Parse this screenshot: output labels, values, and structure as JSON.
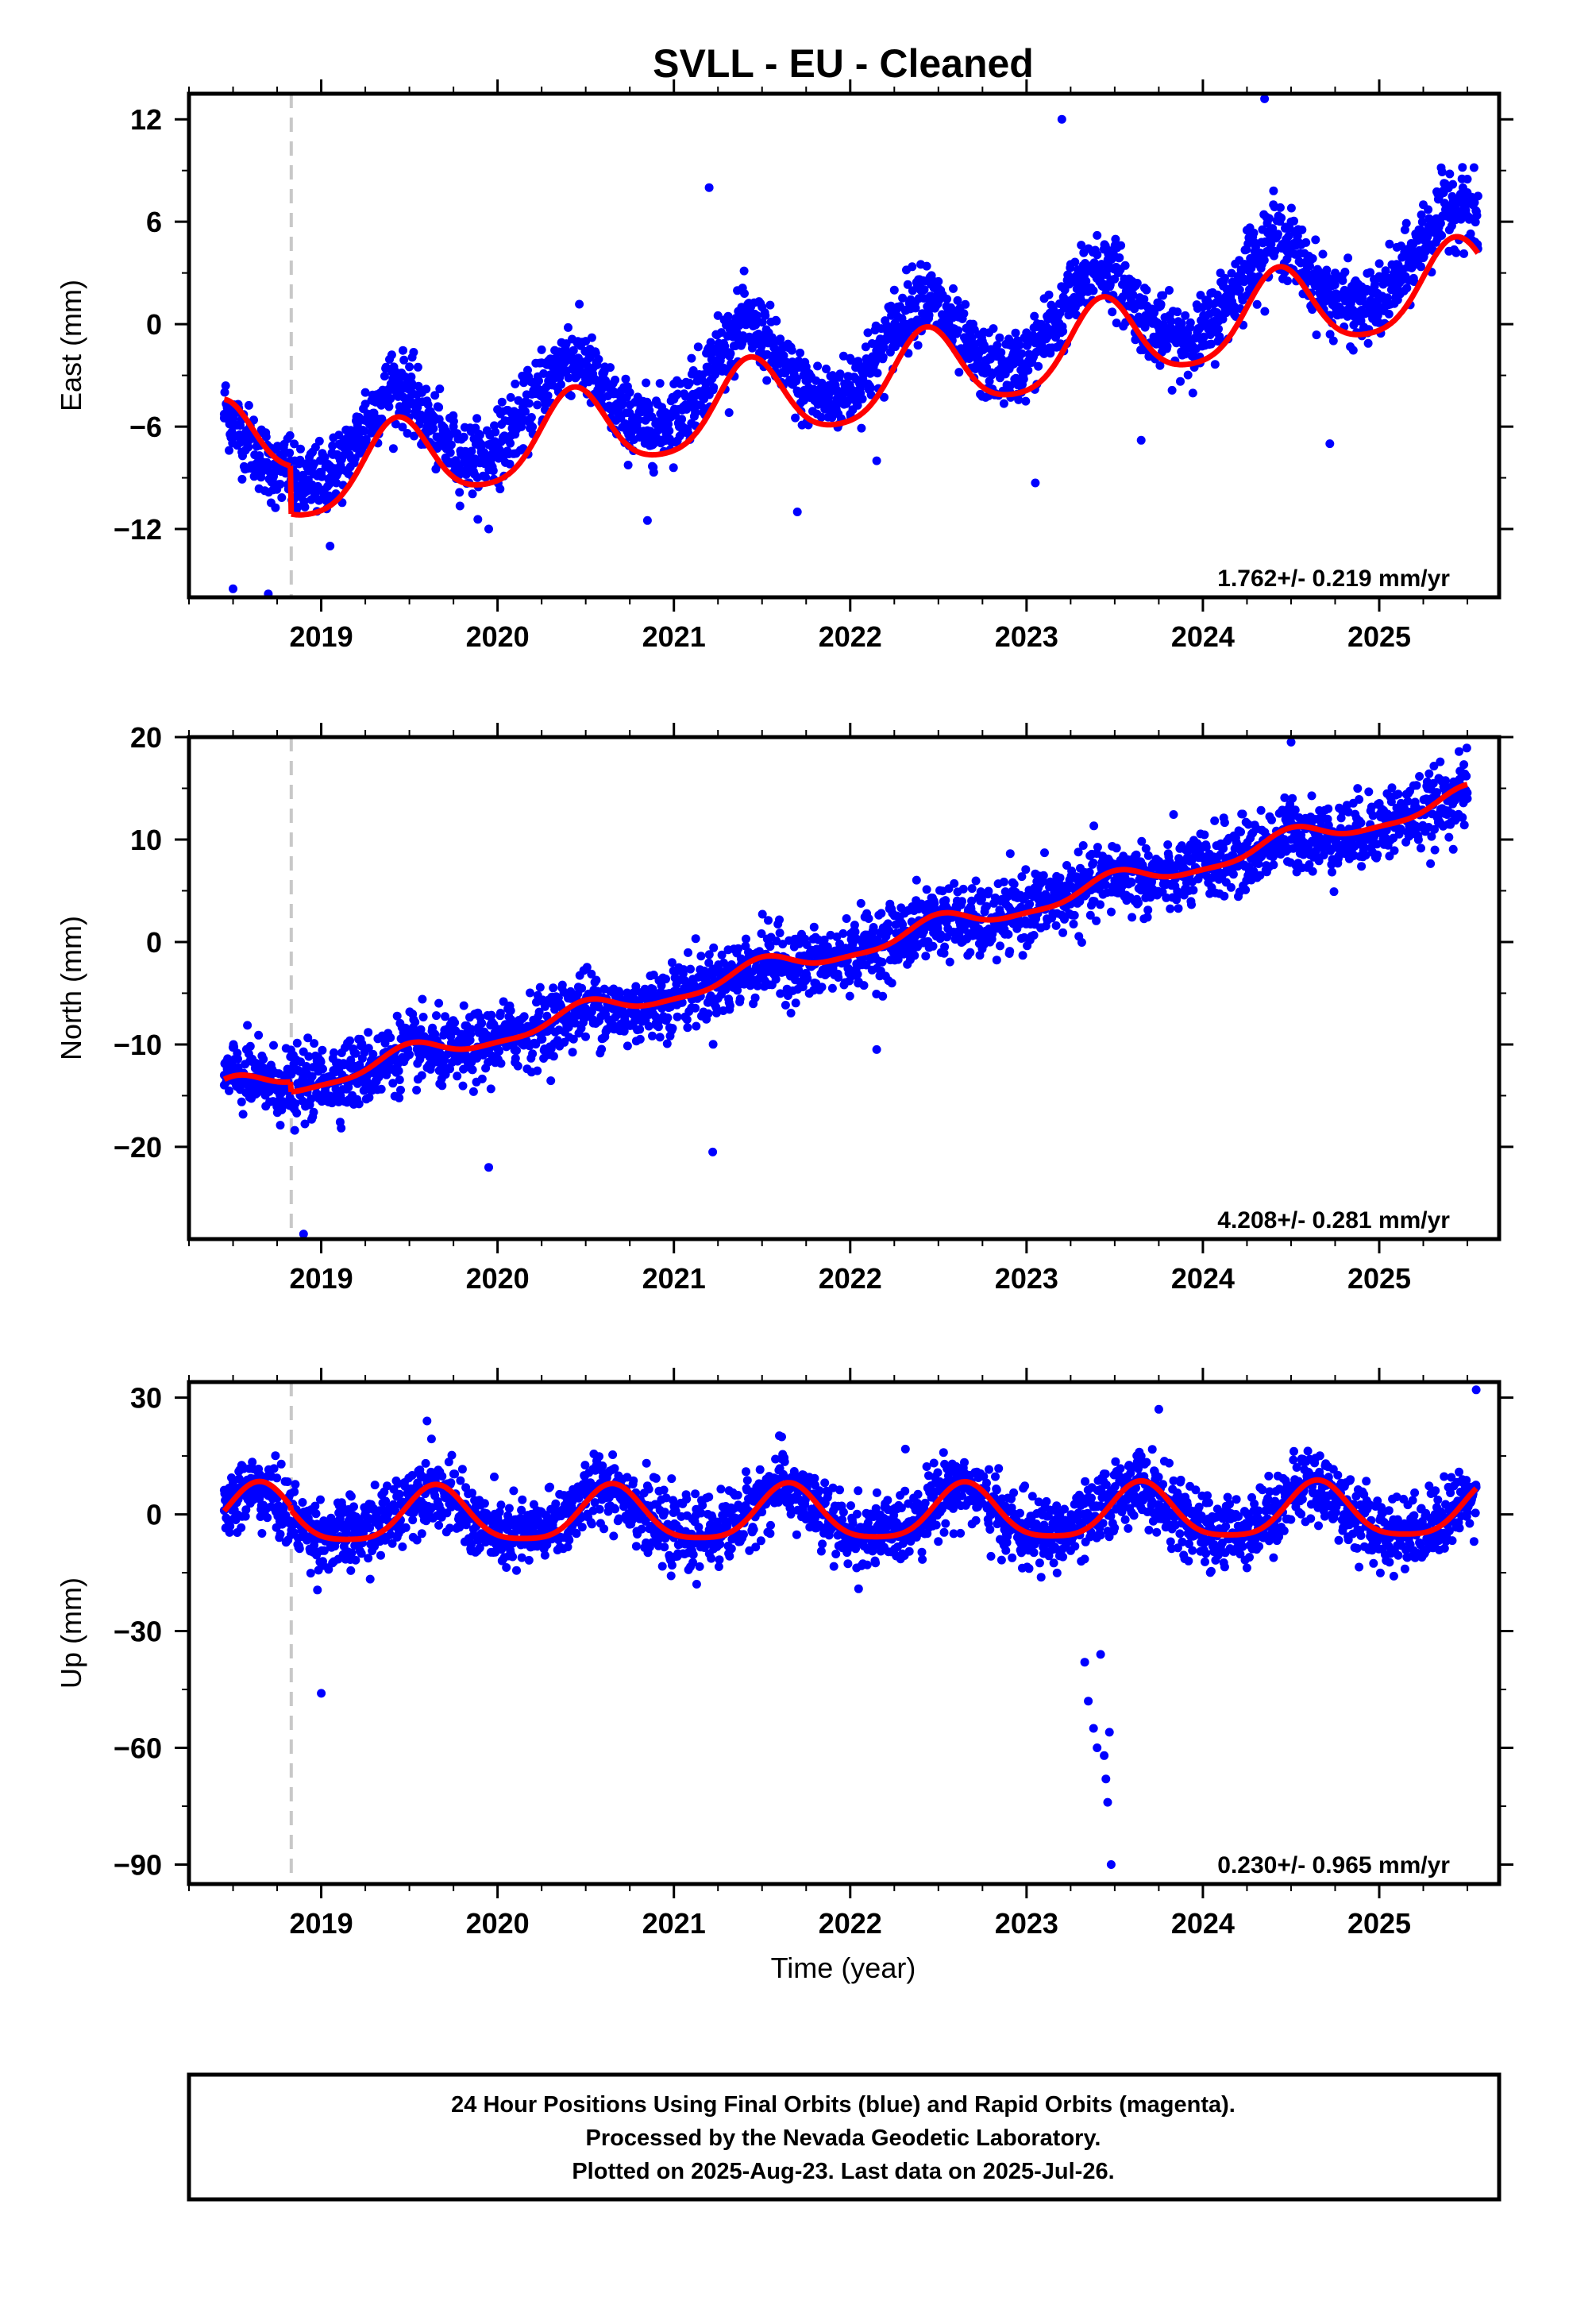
{
  "figure": {
    "title": "SVLL  - EU - Cleaned",
    "xlabel": "Time (year)",
    "footer": [
      "24 Hour Positions Using Final Orbits (blue) and Rapid Orbits (magenta).",
      "Processed by the Nevada Geodetic Laboratory.",
      "Plotted on 2025-Aug-23. Last data on 2025-Jul-26."
    ],
    "colors": {
      "points": "#0000ff",
      "model": "#ff0000",
      "event_line": "#c8c8c8",
      "frame": "#000000"
    }
  },
  "chart_data": [
    {
      "type": "scatter",
      "component": "East",
      "ylabel": "East (mm)",
      "xlim": [
        2018.25,
        2025.68
      ],
      "ylim": [
        -16,
        13.5
      ],
      "yticks": [
        -12,
        -6,
        0,
        6,
        12
      ],
      "xticks": [
        2019,
        2020,
        2021,
        2022,
        2023,
        2024,
        2025
      ],
      "rate_label": "1.762+/- 0.219 mm/yr",
      "event_line_x": 2018.83,
      "model": {
        "offset_before_event": -6.5,
        "offset_after_event": -9.3,
        "trend_mm_per_yr": 1.76,
        "annual_amp": 2.4,
        "semiannual_amp": 0.4,
        "annual_phase_peak": 0.43
      },
      "series": [
        {
          "role": "daily positions (final orbits)",
          "x": [
            2018.45,
            2018.55,
            2018.65,
            2018.75,
            2018.85,
            2018.95,
            2019.1,
            2019.25,
            2019.4,
            2019.5,
            2019.6,
            2019.75,
            2019.9,
            2020.0,
            2020.1,
            2020.25,
            2020.4,
            2020.5,
            2020.6,
            2020.75,
            2020.9,
            2021.0,
            2021.1,
            2021.25,
            2021.4,
            2021.5,
            2021.6,
            2021.75,
            2021.9,
            2022.0,
            2022.1,
            2022.25,
            2022.4,
            2022.5,
            2022.6,
            2022.75,
            2022.9,
            2023.0,
            2023.1,
            2023.25,
            2023.4,
            2023.5,
            2023.6,
            2023.75,
            2023.9,
            2024.0,
            2024.1,
            2024.25,
            2024.4,
            2024.5,
            2024.6,
            2024.75,
            2024.9,
            2025.0,
            2025.1,
            2025.25,
            2025.4,
            2025.5,
            2025.56
          ],
          "y": [
            -5.5,
            -7.5,
            -8.5,
            -9.5,
            -8.0,
            -7.5,
            -6.5,
            -4.0,
            -1.8,
            -2.5,
            -4.5,
            -6.0,
            -6.5,
            -5.0,
            -3.5,
            -1.5,
            -0.2,
            -1.0,
            -2.8,
            -4.0,
            -4.5,
            -3.5,
            -2.0,
            0.5,
            1.8,
            1.0,
            -1.0,
            -2.5,
            -3.0,
            -2.0,
            -0.5,
            2.0,
            3.5,
            2.5,
            0.5,
            -1.0,
            -1.2,
            -0.5,
            1.5,
            3.5,
            5.2,
            4.5,
            2.5,
            1.0,
            0.5,
            1.0,
            3.0,
            5.5,
            7.0,
            6.0,
            4.0,
            3.0,
            2.2,
            2.8,
            4.5,
            7.0,
            8.8,
            8.5,
            7.5
          ]
        },
        {
          "role": "outliers",
          "x": [
            2018.5,
            2018.7,
            2019.05,
            2019.95,
            2020.85,
            2021.2,
            2021.7,
            2022.15,
            2023.05,
            2023.2,
            2023.65,
            2024.35,
            2024.72
          ],
          "y": [
            -15.5,
            -15.8,
            -13.0,
            -12.0,
            -11.5,
            8.0,
            -11.0,
            -8.0,
            -9.3,
            12.0,
            -6.8,
            13.2,
            -7.0
          ]
        }
      ]
    },
    {
      "type": "scatter",
      "component": "North",
      "ylabel": "North (mm)",
      "xlim": [
        2018.25,
        2025.68
      ],
      "ylim": [
        -29,
        20
      ],
      "yticks": [
        -20,
        -10,
        0,
        10,
        20
      ],
      "xticks": [
        2019,
        2020,
        2021,
        2022,
        2023,
        2024,
        2025
      ],
      "rate_label": "4.208+/- 0.281 mm/yr",
      "event_line_x": 2018.83,
      "model": {
        "offset_before_event": -13.0,
        "offset_after_event": -14.0,
        "trend_mm_per_yr": 4.21,
        "annual_amp": 1.0,
        "semiannual_amp": 0.3,
        "annual_phase_peak": 0.5
      },
      "series": [
        {
          "role": "daily positions (final orbits)",
          "x": [
            2018.45,
            2018.6,
            2018.75,
            2018.9,
            2019.1,
            2019.3,
            2019.5,
            2019.7,
            2019.9,
            2020.1,
            2020.3,
            2020.5,
            2020.7,
            2020.9,
            2021.1,
            2021.3,
            2021.5,
            2021.7,
            2021.9,
            2022.1,
            2022.3,
            2022.5,
            2022.7,
            2022.9,
            2023.1,
            2023.3,
            2023.5,
            2023.7,
            2023.9,
            2024.1,
            2024.3,
            2024.5,
            2024.7,
            2024.9,
            2025.1,
            2025.3,
            2025.5
          ],
          "y": [
            -13.0,
            -13.5,
            -14.5,
            -13.5,
            -12.5,
            -12.5,
            -11.0,
            -11.5,
            -10.5,
            -8.5,
            -8.0,
            -6.5,
            -8.0,
            -6.0,
            -4.0,
            -4.0,
            -2.5,
            -3.0,
            -2.0,
            0.0,
            0.5,
            2.0,
            1.0,
            2.5,
            4.5,
            5.0,
            6.0,
            5.5,
            6.5,
            8.5,
            8.5,
            10.0,
            9.5,
            10.5,
            12.5,
            12.5,
            14.0
          ]
        },
        {
          "role": "outliers",
          "x": [
            2018.9,
            2019.95,
            2021.22,
            2022.15,
            2024.5
          ],
          "y": [
            -28.5,
            -22.0,
            -20.5,
            -10.5,
            19.5
          ]
        }
      ]
    },
    {
      "type": "scatter",
      "component": "Up",
      "ylabel": "Up (mm)",
      "xlim": [
        2018.25,
        2025.68
      ],
      "ylim": [
        -95,
        34
      ],
      "yticks": [
        -90,
        -60,
        -30,
        0,
        30
      ],
      "xticks": [
        2019,
        2020,
        2021,
        2022,
        2023,
        2024,
        2025
      ],
      "rate_label": "0.230+/- 0.965 mm/yr",
      "event_line_x": 2018.83,
      "model": {
        "offset_before_event": 0.0,
        "offset_after_event": -1.0,
        "trend_mm_per_yr": 0.23,
        "annual_amp": 7.0,
        "semiannual_amp": 1.5,
        "annual_phase_peak": 0.65
      },
      "series": [
        {
          "role": "daily positions (final orbits)",
          "x": [
            2018.45,
            2018.6,
            2018.8,
            2019.0,
            2019.2,
            2019.4,
            2019.6,
            2019.8,
            2020.0,
            2020.2,
            2020.4,
            2020.6,
            2020.8,
            2021.0,
            2021.2,
            2021.4,
            2021.6,
            2021.8,
            2022.0,
            2022.2,
            2022.4,
            2022.6,
            2022.8,
            2023.0,
            2023.2,
            2023.4,
            2023.6,
            2023.8,
            2024.0,
            2024.2,
            2024.4,
            2024.6,
            2024.8,
            2025.0,
            2025.2,
            2025.4,
            2025.55
          ],
          "y": [
            1.0,
            6.0,
            -2.0,
            -6.0,
            -4.0,
            2.0,
            8.0,
            -2.0,
            -6.0,
            -4.0,
            2.0,
            8.0,
            0.0,
            -6.0,
            -4.0,
            2.0,
            8.0,
            -1.0,
            -6.0,
            -4.0,
            2.0,
            8.0,
            0.0,
            -6.0,
            -4.0,
            2.0,
            8.0,
            0.0,
            -5.0,
            -3.0,
            2.0,
            9.0,
            0.0,
            -5.0,
            -3.0,
            1.0,
            7.0
          ]
        },
        {
          "role": "outliers",
          "x": [
            2019.0,
            2019.6,
            2023.33,
            2023.35,
            2023.38,
            2023.4,
            2023.42,
            2023.44,
            2023.45,
            2023.46,
            2023.47,
            2023.48,
            2023.75,
            2025.55
          ],
          "y": [
            -46.0,
            24.0,
            -38.0,
            -48.0,
            -55.0,
            -60.0,
            -36.0,
            -62.0,
            -68.0,
            -74.0,
            -56.0,
            -90.0,
            27.0,
            32.0
          ]
        }
      ]
    }
  ]
}
